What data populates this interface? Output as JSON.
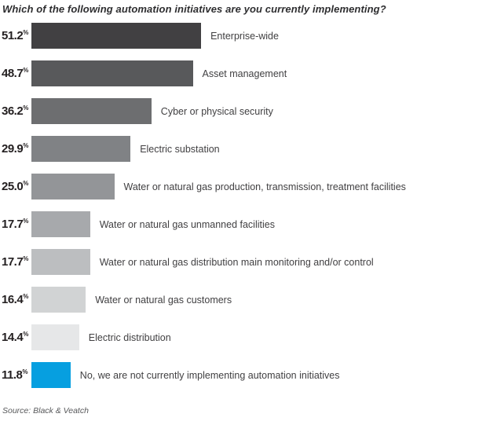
{
  "chart_data": {
    "type": "bar",
    "orientation": "horizontal",
    "title": "Which of the following automation initiatives are you currently implementing?",
    "source": "Source: Black & Veatch",
    "unit": "%",
    "xlim": [
      0,
      55
    ],
    "grid": false,
    "legend": "none",
    "categories": [
      "Enterprise-wide",
      "Asset management",
      "Cyber or physical security",
      "Electric substation",
      "Water or natural gas production, transmission, treatment facilities",
      "Water or natural gas unmanned facilities",
      "Water or natural gas distribution main monitoring and/or control",
      "Water or natural gas customers",
      "Electric distribution",
      "No, we are not currently implementing automation initiatives"
    ],
    "values": [
      51.2,
      48.7,
      36.2,
      29.9,
      25.0,
      17.7,
      17.7,
      16.4,
      14.4,
      11.8
    ],
    "value_labels": [
      "51.2",
      "48.7",
      "36.2",
      "29.9",
      "25.0",
      "17.7",
      "17.7",
      "16.4",
      "14.4",
      "11.8"
    ],
    "bar_colors": [
      "#414042",
      "#58595b",
      "#6d6e70",
      "#808285",
      "#939598",
      "#a7a9ac",
      "#bcbec0",
      "#d1d3d4",
      "#e6e7e8",
      "#069fe0"
    ],
    "accent_color": "#069fe0"
  }
}
